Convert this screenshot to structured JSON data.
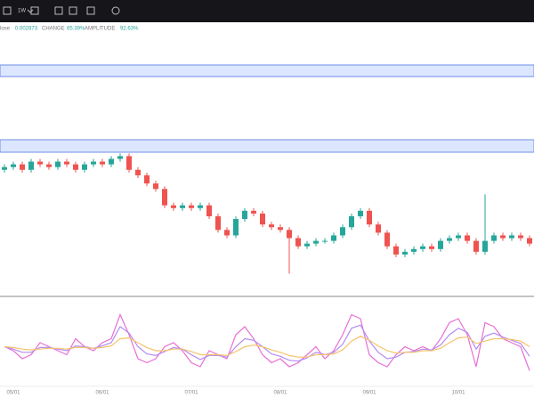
{
  "toolbar": {
    "interval": "1W"
  },
  "header": {
    "close_label": "lose",
    "close_value": "0.002873",
    "change_label": "CHANGE",
    "change_value": "65.39%",
    "amplitude_label": "AMPLITUDE",
    "amplitude_value": "92.63%"
  },
  "chart_data": [
    {
      "type": "candlestick",
      "categories": [
        null,
        "05/01",
        null,
        null,
        null,
        null,
        null,
        null,
        null,
        null,
        null,
        "06/01",
        null,
        null,
        null,
        null,
        null,
        null,
        null,
        null,
        null,
        "07/01",
        null,
        null,
        null,
        null,
        null,
        null,
        null,
        null,
        null,
        "08/01",
        null,
        null,
        null,
        null,
        null,
        null,
        null,
        null,
        null,
        "09/01",
        null,
        null,
        null,
        null,
        null,
        null,
        null,
        null,
        null,
        "10/01",
        null,
        null,
        null,
        null,
        null,
        null,
        null,
        null
      ],
      "open": [
        46,
        47,
        48,
        46,
        49,
        48,
        47,
        49,
        48,
        46,
        48,
        49,
        48,
        50,
        51,
        46,
        44,
        41,
        39,
        33,
        32,
        33,
        32,
        33,
        29,
        24,
        22,
        28,
        31,
        30,
        26,
        25,
        24,
        21,
        18,
        19,
        20,
        20,
        22,
        25,
        29,
        31,
        26,
        23,
        18,
        15,
        16,
        17,
        18,
        17,
        20,
        21,
        22,
        20,
        16,
        20,
        22,
        21,
        22,
        21
      ],
      "high": [
        48,
        49,
        49,
        50,
        50,
        49,
        50,
        50,
        49,
        49,
        50,
        50,
        51,
        52,
        52,
        47,
        45,
        42,
        40,
        34,
        34,
        34,
        34,
        34,
        30,
        25,
        29,
        32,
        32,
        31,
        27,
        26,
        25,
        22,
        20,
        21,
        21,
        23,
        26,
        30,
        32,
        32,
        27,
        24,
        19,
        17,
        18,
        19,
        19,
        21,
        22,
        23,
        23,
        21,
        37,
        23,
        23,
        23,
        23,
        22
      ],
      "low": [
        45,
        46,
        45,
        45,
        47,
        46,
        46,
        47,
        45,
        45,
        47,
        47,
        47,
        49,
        45,
        43,
        40,
        38,
        32,
        31,
        31,
        31,
        31,
        28,
        23,
        21,
        21,
        27,
        29,
        25,
        24,
        23,
        8,
        17,
        17,
        18,
        19,
        19,
        21,
        24,
        28,
        25,
        22,
        17,
        14,
        14,
        15,
        16,
        16,
        16,
        19,
        20,
        19,
        15,
        15,
        19,
        20,
        20,
        20,
        18
      ],
      "close": [
        47,
        48,
        46,
        49,
        48,
        47,
        49,
        48,
        46,
        48,
        49,
        48,
        50,
        51,
        46,
        44,
        41,
        39,
        33,
        32,
        33,
        32,
        33,
        29,
        24,
        22,
        28,
        31,
        30,
        26,
        25,
        24,
        21,
        18,
        19,
        20,
        20,
        22,
        25,
        29,
        31,
        26,
        23,
        18,
        15,
        16,
        17,
        18,
        17,
        20,
        21,
        22,
        20,
        16,
        20,
        22,
        21,
        22,
        21,
        19
      ],
      "up_color": "#26a69a",
      "down_color": "#ef5350",
      "ylim": [
        0,
        100
      ]
    },
    {
      "type": "line",
      "series": [
        {
          "color": "#e86fd6",
          "values": [
            45,
            40,
            30,
            35,
            50,
            45,
            40,
            35,
            55,
            45,
            40,
            50,
            55,
            85,
            60,
            30,
            25,
            30,
            45,
            50,
            40,
            25,
            20,
            40,
            35,
            30,
            60,
            70,
            55,
            35,
            25,
            30,
            20,
            25,
            35,
            45,
            30,
            40,
            60,
            85,
            80,
            35,
            25,
            20,
            35,
            45,
            40,
            45,
            40,
            55,
            75,
            80,
            60,
            20,
            75,
            70,
            55,
            50,
            45,
            15
          ]
        },
        {
          "color": "#b48cf0",
          "values": [
            45,
            42,
            38,
            38,
            44,
            44,
            42,
            40,
            46,
            45,
            43,
            46,
            50,
            70,
            62,
            45,
            36,
            34,
            39,
            44,
            42,
            35,
            29,
            34,
            34,
            32,
            45,
            55,
            53,
            45,
            36,
            33,
            28,
            27,
            31,
            38,
            35,
            38,
            48,
            68,
            72,
            52,
            38,
            30,
            32,
            38,
            39,
            42,
            41,
            47,
            60,
            68,
            63,
            42,
            58,
            62,
            57,
            53,
            49,
            33
          ]
        },
        {
          "color": "#f5c36b",
          "values": [
            45,
            44,
            42,
            41,
            42,
            43,
            43,
            42,
            44,
            44,
            43,
            44,
            46,
            55,
            56,
            50,
            44,
            40,
            40,
            42,
            42,
            39,
            35,
            35,
            35,
            34,
            39,
            45,
            47,
            45,
            41,
            38,
            34,
            32,
            32,
            35,
            35,
            36,
            41,
            52,
            58,
            53,
            46,
            40,
            37,
            38,
            38,
            40,
            40,
            43,
            50,
            56,
            57,
            49,
            52,
            55,
            55,
            54,
            52,
            45
          ]
        }
      ],
      "ylim": [
        0,
        100
      ]
    }
  ]
}
